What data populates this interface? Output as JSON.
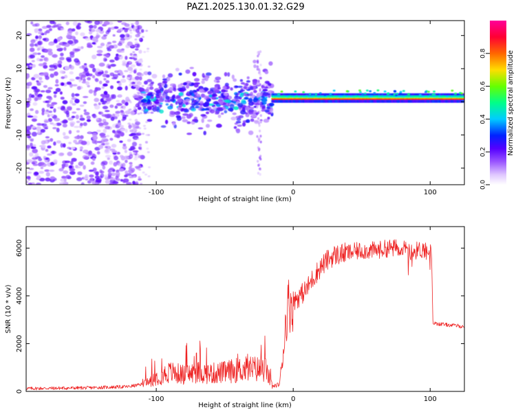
{
  "title": "PAZ1.2025.130.01.32.G29",
  "chart_data": [
    {
      "type": "heatmap",
      "title": "PAZ1.2025.130.01.32.G29",
      "xlabel": "Height of straight line (km)",
      "ylabel": "Frequency (Hz)",
      "xlim": [
        -195,
        125
      ],
      "ylim": [
        -25,
        24.5
      ],
      "x_ticks": [
        -100,
        0,
        100
      ],
      "y_ticks": [
        -20,
        -10,
        0,
        10,
        20
      ],
      "colorbar": {
        "label": "Normalized spectral amplitude",
        "range": [
          0,
          1
        ],
        "ticks": [
          "0.0",
          "0.2",
          "0.4",
          "0.6",
          "0.8"
        ],
        "colors": [
          "#ffffff",
          "#cc99ff",
          "#6600ff",
          "#0000ff",
          "#00ccff",
          "#00ff66",
          "#aaff00",
          "#ffcc00",
          "#ff3300",
          "#ff0066",
          "#ff00aa"
        ]
      },
      "features": {
        "noise_region_x": [
          -195,
          -110
        ],
        "scatter_region_x": [
          -110,
          -15
        ],
        "signal_line_x": [
          -15,
          125
        ],
        "signal_line_freq_hz": 0.8,
        "vertical_streak_x": -25
      }
    },
    {
      "type": "line",
      "xlabel": "Height of straight line (km)",
      "ylabel": "SNR (10 * v/v)",
      "xlim": [
        -195,
        125
      ],
      "ylim": [
        0,
        6900
      ],
      "x_ticks": [
        -100,
        0,
        100
      ],
      "y_ticks": [
        0,
        2000,
        4000,
        6000
      ],
      "color": "#ee2222",
      "series": [
        {
          "x": [
            -195,
            -150,
            -120,
            -110,
            -100,
            -90,
            -80,
            -70,
            -60,
            -50,
            -40,
            -30,
            -20,
            -15,
            -10,
            -7,
            -5,
            -3,
            0,
            5,
            10,
            15,
            20,
            25,
            30,
            40,
            50,
            60,
            70,
            80,
            85,
            90,
            95,
            100,
            101,
            102,
            103,
            110,
            120,
            125
          ],
          "y": [
            120,
            150,
            200,
            300,
            600,
            800,
            700,
            800,
            750,
            800,
            900,
            950,
            900,
            200,
            300,
            1800,
            3200,
            3700,
            3800,
            4000,
            4300,
            4800,
            5200,
            5500,
            5700,
            5800,
            5900,
            5900,
            6000,
            6000,
            5800,
            5900,
            5950,
            5900,
            5700,
            2900,
            2850,
            2800,
            2750,
            2700
          ]
        }
      ]
    }
  ]
}
